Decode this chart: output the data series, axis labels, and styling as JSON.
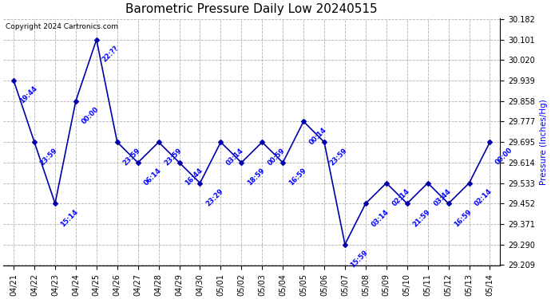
{
  "title": "Barometric Pressure Daily Low 20240515",
  "ylabel": "Pressure (Inches/Hg)",
  "copyright": "Copyright 2024 Cartronics.com",
  "line_color": "#0000aa",
  "background_color": "#ffffff",
  "grid_color": "#aaaaaa",
  "text_color": "#0000ff",
  "dates": [
    "04/21",
    "04/22",
    "04/23",
    "04/24",
    "04/25",
    "04/26",
    "04/27",
    "04/28",
    "04/29",
    "04/30",
    "05/01",
    "05/02",
    "05/03",
    "05/04",
    "05/05",
    "05/06",
    "05/07",
    "05/08",
    "05/09",
    "05/10",
    "05/11",
    "05/12",
    "05/13",
    "05/14"
  ],
  "values": [
    29.939,
    29.695,
    29.452,
    29.858,
    30.101,
    29.695,
    29.614,
    29.695,
    29.614,
    29.533,
    29.695,
    29.614,
    29.695,
    29.614,
    29.777,
    29.695,
    29.29,
    29.452,
    29.533,
    29.452,
    29.533,
    29.452,
    29.533,
    29.695
  ],
  "annotations": [
    "19:44",
    "23:59",
    "15:14",
    "00:00",
    "22:??",
    "23:59",
    "06:14",
    "23:59",
    "16:44",
    "23:29",
    "03:14",
    "18:59",
    "00:59",
    "16:59",
    "00:14",
    "23:59",
    "15:59",
    "03:14",
    "02:14",
    "21:59",
    "03:44",
    "16:59",
    "02:14",
    "00:00"
  ],
  "ylim_min": 29.209,
  "ylim_max": 30.182,
  "yticks": [
    29.209,
    29.29,
    29.371,
    29.452,
    29.533,
    29.614,
    29.695,
    29.777,
    29.858,
    29.939,
    30.02,
    30.101,
    30.182
  ],
  "title_fontsize": 11,
  "label_fontsize": 7.5,
  "tick_fontsize": 7,
  "annotation_fontsize": 6,
  "marker": "D",
  "marker_size": 3,
  "line_width": 1.2
}
